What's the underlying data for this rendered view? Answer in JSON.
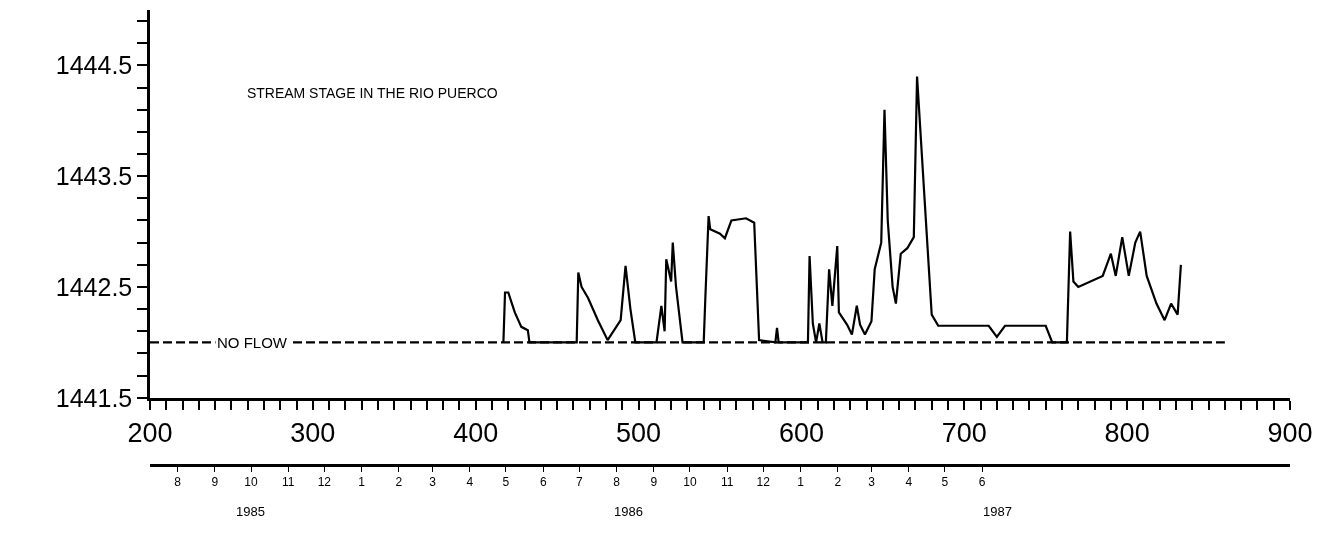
{
  "chart_data": {
    "type": "line",
    "title": "STREAM STAGE IN THE RIO PUERCO",
    "series": [
      {
        "color": "#000000",
        "line_style": "solid",
        "x": [
          417,
          418,
          420,
          424,
          428,
          432,
          433,
          462,
          463,
          465,
          469,
          475,
          481,
          489,
          492,
          495,
          498,
          511,
          514,
          516,
          517,
          520,
          521,
          523,
          527,
          540,
          541,
          543,
          544,
          550,
          553,
          557,
          566,
          571,
          574,
          584,
          585,
          586,
          604,
          605,
          607,
          609,
          611,
          613,
          615,
          617,
          619,
          622,
          623,
          628,
          631,
          634,
          636,
          639,
          643,
          645,
          649,
          651,
          653,
          656,
          658,
          661,
          665,
          669,
          671,
          676,
          680,
          684,
          715,
          720,
          725,
          750,
          754,
          763,
          765,
          767,
          770,
          785,
          790,
          793,
          797,
          801,
          805,
          808,
          812,
          818,
          823,
          827,
          831,
          833
        ],
        "values": [
          1442.0,
          1442.45,
          1442.45,
          1442.27,
          1442.14,
          1442.11,
          1442.0,
          1442.0,
          1442.63,
          1442.5,
          1442.4,
          1442.2,
          1442.02,
          1442.2,
          1442.69,
          1442.3,
          1442.0,
          1442.0,
          1442.33,
          1442.1,
          1442.75,
          1442.55,
          1442.9,
          1442.5,
          1442.0,
          1442.0,
          1442.4,
          1443.14,
          1443.02,
          1442.98,
          1442.94,
          1443.1,
          1443.12,
          1443.08,
          1442.02,
          1442.0,
          1442.13,
          1442.0,
          1442.0,
          1442.78,
          1442.17,
          1442.0,
          1442.17,
          1442.0,
          1442.0,
          1442.66,
          1442.33,
          1442.87,
          1442.27,
          1442.16,
          1442.07,
          1442.33,
          1442.16,
          1442.07,
          1442.19,
          1442.66,
          1442.9,
          1444.1,
          1443.1,
          1442.5,
          1442.35,
          1442.8,
          1442.85,
          1442.95,
          1444.4,
          1443.2,
          1442.25,
          1442.15,
          1442.15,
          1442.05,
          1442.15,
          1442.15,
          1442.0,
          1442.0,
          1443.0,
          1442.55,
          1442.5,
          1442.6,
          1442.8,
          1442.6,
          1442.95,
          1442.6,
          1442.9,
          1443.0,
          1442.6,
          1442.35,
          1442.2,
          1442.35,
          1442.25,
          1442.7
        ]
      },
      {
        "type": "line",
        "color": "#000000",
        "line_style": "dashed",
        "x": [
          200,
          860
        ],
        "values": [
          1442.0,
          1442.0
        ]
      }
    ],
    "annotations": [
      {
        "text": "NO FLOW",
        "x": 263,
        "y": 1442.0
      },
      "1985",
      "1986",
      "1987"
    ],
    "xlim": [
      200,
      900
    ],
    "xticks": [
      200,
      {
        "value": 210,
        "label": null
      },
      {
        "value": 220,
        "label": null
      },
      {
        "value": 230,
        "label": null
      },
      {
        "value": 240,
        "label": null
      },
      {
        "value": 250,
        "label": null
      },
      {
        "value": 260,
        "label": null
      },
      {
        "value": 270,
        "label": null
      },
      {
        "value": 280,
        "label": null
      },
      {
        "value": 290,
        "label": null
      },
      300,
      {
        "value": 310,
        "label": null
      },
      {
        "value": 320,
        "label": null
      },
      {
        "value": 330,
        "label": null
      },
      {
        "value": 340,
        "label": null
      },
      {
        "value": 350,
        "label": null
      },
      {
        "value": 360,
        "label": null
      },
      {
        "value": 370,
        "label": null
      },
      {
        "value": 380,
        "label": null
      },
      {
        "value": 390,
        "label": null
      },
      400,
      {
        "value": 410,
        "label": null
      },
      {
        "value": 420,
        "label": null
      },
      {
        "value": 430,
        "label": null
      },
      {
        "value": 440,
        "label": null
      },
      {
        "value": 450,
        "label": null
      },
      {
        "value": 460,
        "label": null
      },
      {
        "value": 470,
        "label": null
      },
      {
        "value": 480,
        "label": null
      },
      {
        "value": 490,
        "label": null
      },
      500,
      {
        "value": 510,
        "label": null
      },
      {
        "value": 520,
        "label": null
      },
      {
        "value": 530,
        "label": null
      },
      {
        "value": 540,
        "label": null
      },
      {
        "value": 550,
        "label": null
      },
      {
        "value": 560,
        "label": null
      },
      {
        "value": 570,
        "label": null
      },
      {
        "value": 580,
        "label": null
      },
      {
        "value": 590,
        "label": null
      },
      600,
      {
        "value": 610,
        "label": null
      },
      {
        "value": 620,
        "label": null
      },
      {
        "value": 630,
        "label": null
      },
      {
        "value": 640,
        "label": null
      },
      {
        "value": 650,
        "label": null
      },
      {
        "value": 660,
        "label": null
      },
      {
        "value": 670,
        "label": null
      },
      {
        "value": 680,
        "label": null
      },
      {
        "value": 690,
        "label": null
      },
      700,
      {
        "value": 710,
        "label": null
      },
      {
        "value": 720,
        "label": null
      },
      {
        "value": 730,
        "label": null
      },
      {
        "value": 740,
        "label": null
      },
      {
        "value": 750,
        "label": null
      },
      {
        "value": 760,
        "label": null
      },
      {
        "value": 770,
        "label": null
      },
      {
        "value": 780,
        "label": null
      },
      {
        "value": 790,
        "label": null
      },
      800,
      {
        "value": 810,
        "label": null
      },
      {
        "value": 820,
        "label": null
      },
      {
        "value": 830,
        "label": null
      },
      {
        "value": 840,
        "label": null
      },
      {
        "value": 850,
        "label": null
      },
      {
        "value": 860,
        "label": null
      },
      {
        "value": 870,
        "label": null
      },
      {
        "value": 880,
        "label": null
      },
      {
        "value": 890,
        "label": null
      },
      900
    ],
    "ylim": [
      1441.5,
      1445.0
    ],
    "yticks": [
      1441.5,
      {
        "value": 1441.7,
        "label": null
      },
      {
        "value": 1441.9,
        "label": null
      },
      {
        "value": 1442.1,
        "label": null
      },
      {
        "value": 1442.3,
        "label": null
      },
      1442.5,
      {
        "value": 1442.7,
        "label": null
      },
      {
        "value": 1442.9,
        "label": null
      },
      {
        "value": 1443.1,
        "label": null
      },
      {
        "value": 1443.3,
        "label": null
      },
      1443.5,
      {
        "value": 1443.7,
        "label": null
      },
      {
        "value": 1443.9,
        "label": null
      },
      {
        "value": 1444.1,
        "label": null
      },
      {
        "value": 1444.3,
        "label": null
      },
      1444.5,
      {
        "value": 1444.7,
        "label": null
      },
      {
        "value": 1444.9,
        "label": null
      }
    ],
    "x2lim": [
      "1985-07-23",
      "1988-02-26"
    ],
    "x2ticks": [
      {
        "value": "1985-08-15",
        "label": "8"
      },
      {
        "value": "1985-09-15",
        "label": "9"
      },
      {
        "value": "1985-10-15",
        "label": "10"
      },
      {
        "value": "1985-11-15",
        "label": "11"
      },
      {
        "value": "1985-12-15",
        "label": "12"
      },
      {
        "value": "1986-01-15",
        "label": "1"
      },
      {
        "value": "1986-02-15",
        "label": "2"
      },
      {
        "value": "1986-03-15",
        "label": "3"
      },
      {
        "value": "1986-04-15",
        "label": "4"
      },
      {
        "value": "1986-05-15",
        "label": "5"
      },
      {
        "value": "1986-06-15",
        "label": "6"
      },
      {
        "value": "1986-07-15",
        "label": "7"
      },
      {
        "value": "1986-08-15",
        "label": "8"
      },
      {
        "value": "1986-09-15",
        "label": "9"
      },
      {
        "value": "1986-10-15",
        "label": "10"
      },
      {
        "value": "1986-11-15",
        "label": "11"
      },
      {
        "value": "1986-12-15",
        "label": "12"
      },
      {
        "value": "1987-01-15",
        "label": "1"
      },
      {
        "value": "1987-02-15",
        "label": "2"
      },
      {
        "value": "1987-03-15",
        "label": "3"
      },
      {
        "value": "1987-04-15",
        "label": "4"
      },
      {
        "value": "1987-05-15",
        "label": "5"
      },
      {
        "value": "1987-06-15",
        "label": "6"
      }
    ],
    "marker": "none"
  }
}
